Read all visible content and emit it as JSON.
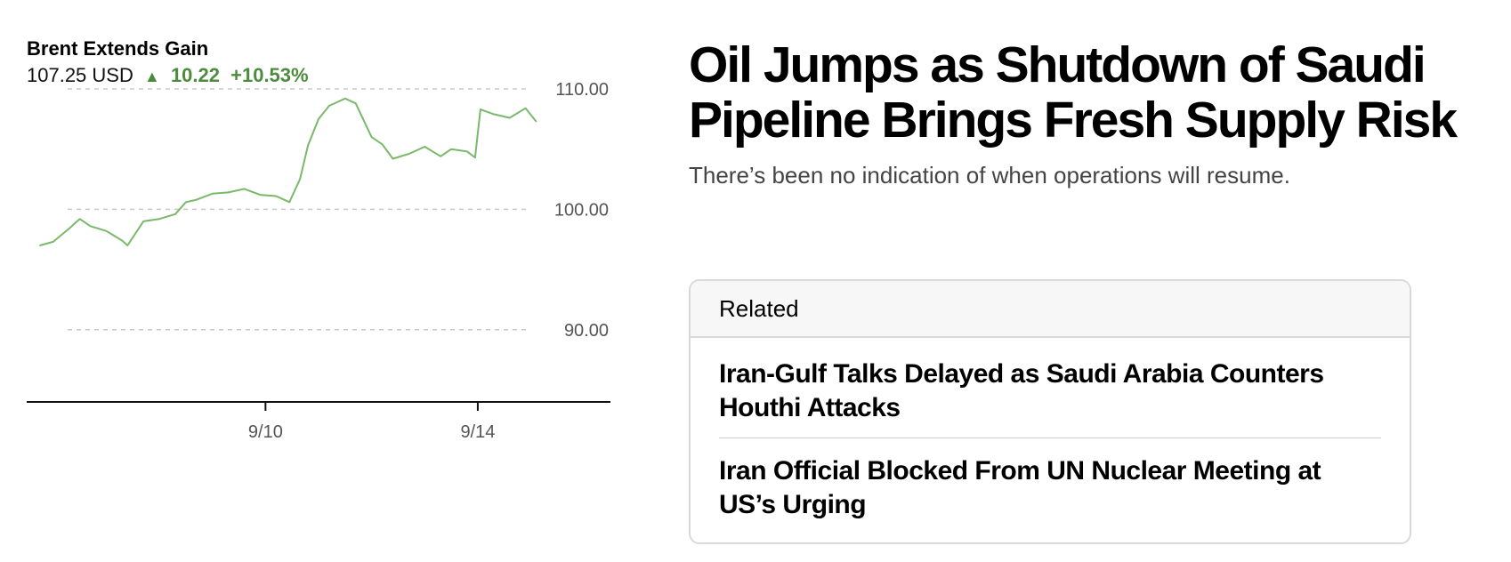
{
  "quote": {
    "title": "Brent Extends Gain",
    "price": "107.25 USD",
    "arrow": "▲",
    "change": "10.22",
    "change_pct": "+10.53%",
    "up_color": "#4c8c3f"
  },
  "chart_data": {
    "type": "line",
    "title": "Brent Extends Gain",
    "xlabel": "",
    "ylabel": "",
    "ylim": [
      84,
      110
    ],
    "yticks": [
      90,
      100,
      110
    ],
    "ytick_labels": [
      "90.00",
      "100.00",
      "110.00"
    ],
    "x_range": [
      5.5,
      16.5
    ],
    "xticks": [
      10,
      14
    ],
    "xtick_labels": [
      "9/10",
      "9/14"
    ],
    "line_color": "#7ab86a",
    "grid": "dashed horizontal",
    "series": [
      {
        "x": [
          5.75,
          6.0,
          6.3,
          6.5,
          6.7,
          7.0,
          7.3,
          7.4,
          7.7,
          8.0,
          8.3,
          8.5,
          8.7,
          9.0,
          9.3,
          9.6,
          9.9,
          10.2,
          10.45,
          10.65,
          10.8,
          11.0,
          11.2,
          11.5,
          11.7,
          12.0,
          12.2,
          12.4,
          12.7,
          13.0,
          13.3,
          13.5,
          13.8,
          13.95,
          14.05,
          14.3,
          14.6,
          14.9,
          15.1
        ],
        "values": [
          97.0,
          97.3,
          98.4,
          99.2,
          98.6,
          98.2,
          97.4,
          97.0,
          99.0,
          99.2,
          99.6,
          100.6,
          100.8,
          101.3,
          101.4,
          101.7,
          101.2,
          101.1,
          100.6,
          102.5,
          105.3,
          107.5,
          108.6,
          109.2,
          108.8,
          106.0,
          105.4,
          104.2,
          104.6,
          105.2,
          104.4,
          105.0,
          104.8,
          104.3,
          108.3,
          107.9,
          107.6,
          108.4,
          107.3
        ]
      }
    ]
  },
  "article": {
    "headline": "Oil Jumps as Shutdown of Saudi Pipeline Brings Fresh Supply Risk",
    "dek": "There’s been no indication of when operations will resume."
  },
  "related": {
    "heading": "Related",
    "items": [
      "Iran-Gulf Talks Delayed as Saudi Arabia Counters Houthi Attacks",
      "Iran Official Blocked From UN Nuclear Meeting at US’s Urging"
    ]
  }
}
